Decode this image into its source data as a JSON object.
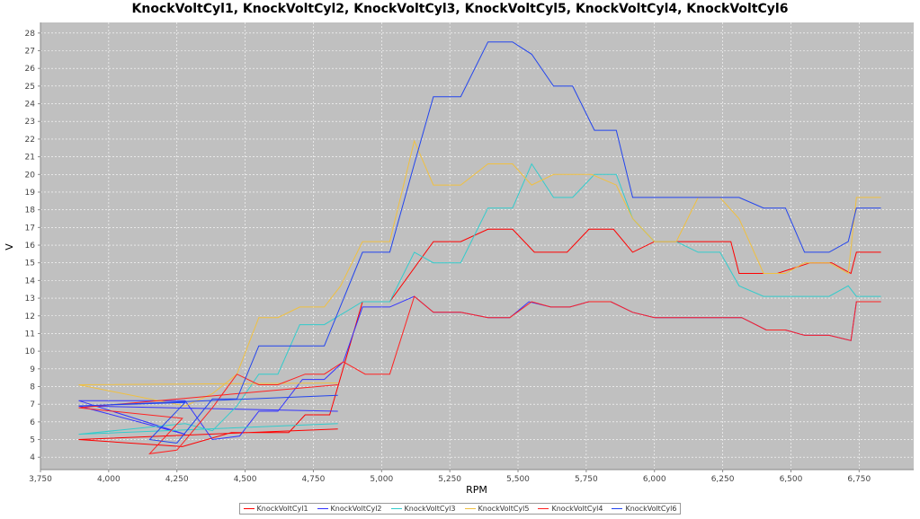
{
  "chart_data": {
    "type": "line",
    "title": "KnockVoltCyl1, KnockVoltCyl2, KnockVoltCyl3, KnockVoltCyl5, KnockVoltCyl4, KnockVoltCyl6",
    "xlabel": "RPM",
    "ylabel": "V",
    "xlim": [
      3750,
      6950
    ],
    "ylim": [
      3.3,
      28.6
    ],
    "x_ticks": [
      "3,750",
      "4,000",
      "4,250",
      "4,500",
      "4,750",
      "5,000",
      "5,250",
      "5,500",
      "5,750",
      "6,000",
      "6,250",
      "6,500",
      "6,750"
    ],
    "y_ticks": [
      "4",
      "5",
      "6",
      "7",
      "8",
      "9",
      "10",
      "11",
      "12",
      "13",
      "14",
      "15",
      "16",
      "17",
      "18",
      "19",
      "20",
      "21",
      "22",
      "23",
      "24",
      "25",
      "26",
      "27",
      "28"
    ],
    "grid": true,
    "legend_position": "bottom",
    "series": [
      {
        "name": "KnockVoltCyl1",
        "color": "#ff0000",
        "points": [
          [
            4840,
            5.6
          ],
          [
            3890,
            5.0
          ],
          [
            4270,
            4.6
          ],
          [
            4450,
            5.4
          ],
          [
            4520,
            5.4
          ],
          [
            4660,
            5.4
          ],
          [
            4720,
            6.4
          ],
          [
            4810,
            6.4
          ],
          [
            4930,
            12.8
          ],
          [
            5030,
            12.8
          ],
          [
            5190,
            16.2
          ],
          [
            5290,
            16.2
          ],
          [
            5390,
            16.9
          ],
          [
            5480,
            16.9
          ],
          [
            5560,
            15.6
          ],
          [
            5680,
            15.6
          ],
          [
            5760,
            16.9
          ],
          [
            5850,
            16.9
          ],
          [
            5920,
            15.6
          ],
          [
            6000,
            16.2
          ],
          [
            6280,
            16.2
          ],
          [
            6310,
            14.4
          ],
          [
            6450,
            14.4
          ],
          [
            6570,
            15.0
          ],
          [
            6650,
            15.0
          ],
          [
            6720,
            14.4
          ],
          [
            6740,
            15.6
          ],
          [
            6830,
            15.6
          ]
        ]
      },
      {
        "name": "KnockVoltCyl2",
        "color": "#3333ff",
        "points": [
          [
            4840,
            6.6
          ],
          [
            3890,
            6.9
          ],
          [
            4280,
            5.3
          ],
          [
            3890,
            7.2
          ],
          [
            4280,
            7.2
          ],
          [
            4380,
            5.0
          ],
          [
            4480,
            5.2
          ],
          [
            4550,
            6.6
          ],
          [
            4620,
            6.6
          ],
          [
            4710,
            8.4
          ],
          [
            4790,
            8.4
          ],
          [
            4860,
            9.4
          ],
          [
            4930,
            12.5
          ],
          [
            5030,
            12.5
          ],
          [
            5120,
            13.1
          ],
          [
            5190,
            12.2
          ],
          [
            5290,
            12.2
          ],
          [
            5390,
            11.9
          ],
          [
            5470,
            11.9
          ],
          [
            5540,
            12.8
          ],
          [
            5620,
            12.5
          ],
          [
            5690,
            12.5
          ],
          [
            5760,
            12.8
          ],
          [
            5840,
            12.8
          ],
          [
            5920,
            12.2
          ],
          [
            6000,
            11.9
          ],
          [
            6320,
            11.9
          ],
          [
            6410,
            11.2
          ],
          [
            6480,
            11.2
          ],
          [
            6550,
            10.9
          ],
          [
            6640,
            10.9
          ],
          [
            6720,
            10.6
          ],
          [
            6740,
            12.8
          ],
          [
            6830,
            12.8
          ]
        ]
      },
      {
        "name": "KnockVoltCyl3",
        "color": "#33cccc",
        "points": [
          [
            4840,
            5.9
          ],
          [
            3890,
            5.3
          ],
          [
            4280,
            5.9
          ],
          [
            4380,
            5.5
          ],
          [
            4470,
            6.9
          ],
          [
            4550,
            8.7
          ],
          [
            4620,
            8.7
          ],
          [
            4700,
            11.5
          ],
          [
            4790,
            11.5
          ],
          [
            4930,
            12.8
          ],
          [
            5030,
            12.8
          ],
          [
            5120,
            15.6
          ],
          [
            5190,
            15.0
          ],
          [
            5290,
            15.0
          ],
          [
            5390,
            18.1
          ],
          [
            5480,
            18.1
          ],
          [
            5550,
            20.6
          ],
          [
            5630,
            18.7
          ],
          [
            5700,
            18.7
          ],
          [
            5780,
            20.0
          ],
          [
            5860,
            20.0
          ],
          [
            5920,
            17.5
          ],
          [
            6000,
            16.2
          ],
          [
            6080,
            16.2
          ],
          [
            6160,
            15.6
          ],
          [
            6240,
            15.6
          ],
          [
            6310,
            13.7
          ],
          [
            6400,
            13.1
          ],
          [
            6480,
            13.1
          ],
          [
            6550,
            13.1
          ],
          [
            6640,
            13.1
          ],
          [
            6710,
            13.7
          ],
          [
            6740,
            13.1
          ],
          [
            6830,
            13.1
          ]
        ]
      },
      {
        "name": "KnockVoltCyl5",
        "color": "#f0c040",
        "points": [
          [
            4840,
            8.2
          ],
          [
            3890,
            8.1
          ],
          [
            4280,
            6.9
          ],
          [
            4380,
            7.6
          ],
          [
            4470,
            8.7
          ],
          [
            4550,
            11.9
          ],
          [
            4620,
            11.9
          ],
          [
            4700,
            12.5
          ],
          [
            4790,
            12.5
          ],
          [
            4850,
            13.7
          ],
          [
            4930,
            16.2
          ],
          [
            5030,
            16.2
          ],
          [
            5120,
            21.9
          ],
          [
            5190,
            19.4
          ],
          [
            5290,
            19.4
          ],
          [
            5390,
            20.6
          ],
          [
            5480,
            20.6
          ],
          [
            5550,
            19.4
          ],
          [
            5630,
            20.0
          ],
          [
            5770,
            20.0
          ],
          [
            5860,
            19.4
          ],
          [
            5920,
            17.5
          ],
          [
            6000,
            16.2
          ],
          [
            6080,
            16.2
          ],
          [
            6160,
            18.7
          ],
          [
            6240,
            18.7
          ],
          [
            6310,
            17.5
          ],
          [
            6400,
            14.4
          ],
          [
            6480,
            14.4
          ],
          [
            6550,
            15.0
          ],
          [
            6640,
            15.0
          ],
          [
            6710,
            14.4
          ],
          [
            6740,
            18.7
          ],
          [
            6830,
            18.7
          ]
        ]
      },
      {
        "name": "KnockVoltCyl4",
        "color": "#ff2222",
        "points": [
          [
            4840,
            8.1
          ],
          [
            3890,
            6.8
          ],
          [
            4270,
            6.2
          ],
          [
            4150,
            4.2
          ],
          [
            4250,
            4.4
          ],
          [
            4380,
            6.8
          ],
          [
            4470,
            8.7
          ],
          [
            4550,
            8.1
          ],
          [
            4620,
            8.1
          ],
          [
            4720,
            8.7
          ],
          [
            4790,
            8.7
          ],
          [
            4860,
            9.4
          ],
          [
            4940,
            8.7
          ],
          [
            5030,
            8.7
          ],
          [
            5120,
            13.1
          ],
          [
            5190,
            12.2
          ],
          [
            5290,
            12.2
          ],
          [
            5390,
            11.9
          ],
          [
            5470,
            11.9
          ],
          [
            5550,
            12.8
          ],
          [
            5620,
            12.5
          ],
          [
            5690,
            12.5
          ],
          [
            5760,
            12.8
          ],
          [
            5840,
            12.8
          ],
          [
            5920,
            12.2
          ],
          [
            6000,
            11.9
          ],
          [
            6320,
            11.9
          ],
          [
            6410,
            11.2
          ],
          [
            6480,
            11.2
          ],
          [
            6550,
            10.9
          ],
          [
            6640,
            10.9
          ],
          [
            6720,
            10.6
          ],
          [
            6740,
            12.8
          ],
          [
            6830,
            12.8
          ]
        ]
      },
      {
        "name": "KnockVoltCyl6",
        "color": "#2244ee",
        "points": [
          [
            4840,
            7.5
          ],
          [
            3890,
            6.9
          ],
          [
            4280,
            7.1
          ],
          [
            4150,
            5.0
          ],
          [
            4250,
            4.8
          ],
          [
            4380,
            7.3
          ],
          [
            4470,
            7.3
          ],
          [
            4550,
            10.3
          ],
          [
            4620,
            10.3
          ],
          [
            4700,
            10.3
          ],
          [
            4790,
            10.3
          ],
          [
            4930,
            15.6
          ],
          [
            5030,
            15.6
          ],
          [
            5120,
            20.6
          ],
          [
            5190,
            24.4
          ],
          [
            5290,
            24.4
          ],
          [
            5390,
            27.5
          ],
          [
            5480,
            27.5
          ],
          [
            5550,
            26.8
          ],
          [
            5630,
            25.0
          ],
          [
            5700,
            25.0
          ],
          [
            5780,
            22.5
          ],
          [
            5860,
            22.5
          ],
          [
            5920,
            18.7
          ],
          [
            6000,
            18.7
          ],
          [
            6080,
            18.7
          ],
          [
            6160,
            18.7
          ],
          [
            6240,
            18.7
          ],
          [
            6310,
            18.7
          ],
          [
            6400,
            18.1
          ],
          [
            6480,
            18.1
          ],
          [
            6550,
            15.6
          ],
          [
            6640,
            15.6
          ],
          [
            6710,
            16.2
          ],
          [
            6740,
            18.1
          ],
          [
            6830,
            18.1
          ]
        ]
      }
    ]
  }
}
